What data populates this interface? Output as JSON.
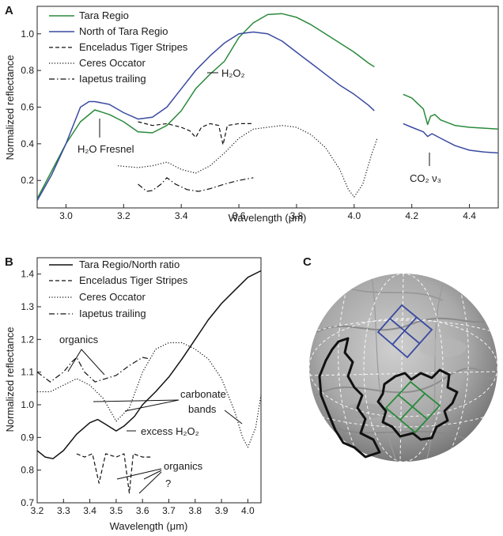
{
  "colors": {
    "green": "#2a8a3c",
    "blue": "#3a4aa0",
    "black": "#111111"
  },
  "chart_data": [
    {
      "panel": "A",
      "type": "line",
      "xlabel": "Wavelength (μm)",
      "ylabel": "Normalized reflectance",
      "xlim": [
        2.9,
        4.5
      ],
      "ylim": [
        0.05,
        1.15
      ],
      "xticks": [
        "3.0",
        "3.2",
        "3.4",
        "3.6",
        "3.8",
        "4.0",
        "4.2",
        "4.4"
      ],
      "yticks": [
        "0.2",
        "0.4",
        "0.6",
        "0.8",
        "1.0"
      ],
      "legend": [
        "Tara Regio",
        "North of Tara Regio",
        "Enceladus Tiger Stripes",
        "Ceres Occator",
        "Iapetus trailing"
      ],
      "annotations": [
        {
          "text": "H₂O Fresnel",
          "x": 3.13,
          "y": 0.52
        },
        {
          "text": "H₂O₂",
          "x": 3.5,
          "y": 0.78
        },
        {
          "text": "CO₂ ν₃",
          "x": 4.26,
          "y": 0.42
        }
      ],
      "series": [
        {
          "name": "Tara Regio",
          "style": "solid",
          "color": "green",
          "segments": [
            [
              [
                2.9,
                0.1
              ],
              [
                2.95,
                0.25
              ],
              [
                3.0,
                0.4
              ],
              [
                3.05,
                0.52
              ],
              [
                3.1,
                0.585
              ],
              [
                3.15,
                0.56
              ],
              [
                3.2,
                0.52
              ],
              [
                3.25,
                0.465
              ],
              [
                3.3,
                0.46
              ],
              [
                3.35,
                0.5
              ],
              [
                3.4,
                0.58
              ],
              [
                3.45,
                0.7
              ],
              [
                3.5,
                0.78
              ],
              [
                3.55,
                0.85
              ],
              [
                3.6,
                0.98
              ],
              [
                3.65,
                1.06
              ],
              [
                3.7,
                1.105
              ],
              [
                3.75,
                1.11
              ],
              [
                3.8,
                1.09
              ],
              [
                3.85,
                1.05
              ],
              [
                3.9,
                1.0
              ],
              [
                3.95,
                0.95
              ],
              [
                4.0,
                0.9
              ],
              [
                4.05,
                0.84
              ],
              [
                4.07,
                0.82
              ]
            ],
            [
              [
                4.17,
                0.67
              ],
              [
                4.2,
                0.65
              ],
              [
                4.22,
                0.62
              ],
              [
                4.24,
                0.59
              ],
              [
                4.255,
                0.505
              ],
              [
                4.265,
                0.55
              ],
              [
                4.28,
                0.56
              ],
              [
                4.3,
                0.53
              ],
              [
                4.35,
                0.5
              ],
              [
                4.4,
                0.49
              ],
              [
                4.5,
                0.48
              ]
            ]
          ]
        },
        {
          "name": "North of Tara Regio",
          "style": "solid",
          "color": "blue",
          "segments": [
            [
              [
                2.9,
                0.09
              ],
              [
                2.95,
                0.23
              ],
              [
                3.0,
                0.4
              ],
              [
                3.05,
                0.6
              ],
              [
                3.08,
                0.63
              ],
              [
                3.1,
                0.63
              ],
              [
                3.15,
                0.615
              ],
              [
                3.2,
                0.57
              ],
              [
                3.25,
                0.535
              ],
              [
                3.3,
                0.545
              ],
              [
                3.35,
                0.6
              ],
              [
                3.4,
                0.7
              ],
              [
                3.45,
                0.8
              ],
              [
                3.5,
                0.88
              ],
              [
                3.55,
                0.95
              ],
              [
                3.6,
                1.0
              ],
              [
                3.65,
                1.01
              ],
              [
                3.7,
                1.0
              ],
              [
                3.75,
                0.96
              ],
              [
                3.8,
                0.9
              ],
              [
                3.85,
                0.84
              ],
              [
                3.9,
                0.78
              ],
              [
                3.95,
                0.72
              ],
              [
                4.0,
                0.67
              ],
              [
                4.05,
                0.61
              ],
              [
                4.07,
                0.58
              ]
            ],
            [
              [
                4.17,
                0.51
              ],
              [
                4.2,
                0.49
              ],
              [
                4.24,
                0.465
              ],
              [
                4.255,
                0.44
              ],
              [
                4.27,
                0.455
              ],
              [
                4.3,
                0.43
              ],
              [
                4.35,
                0.39
              ],
              [
                4.4,
                0.365
              ],
              [
                4.45,
                0.355
              ],
              [
                4.5,
                0.35
              ]
            ]
          ]
        },
        {
          "name": "Enceladus Tiger Stripes",
          "style": "dashed",
          "color": "black",
          "segments": [
            [
              [
                3.25,
                0.52
              ],
              [
                3.3,
                0.5
              ],
              [
                3.35,
                0.51
              ],
              [
                3.4,
                0.49
              ],
              [
                3.43,
                0.47
              ],
              [
                3.45,
                0.435
              ],
              [
                3.47,
                0.49
              ],
              [
                3.5,
                0.51
              ],
              [
                3.53,
                0.5
              ],
              [
                3.545,
                0.395
              ],
              [
                3.56,
                0.5
              ],
              [
                3.6,
                0.51
              ],
              [
                3.65,
                0.51
              ]
            ]
          ]
        },
        {
          "name": "Ceres Occator",
          "style": "dotted",
          "color": "black",
          "segments": [
            [
              [
                3.18,
                0.28
              ],
              [
                3.25,
                0.27
              ],
              [
                3.3,
                0.28
              ],
              [
                3.35,
                0.3
              ],
              [
                3.4,
                0.26
              ],
              [
                3.45,
                0.24
              ],
              [
                3.5,
                0.28
              ],
              [
                3.55,
                0.35
              ],
              [
                3.6,
                0.43
              ],
              [
                3.65,
                0.48
              ],
              [
                3.7,
                0.49
              ],
              [
                3.75,
                0.5
              ],
              [
                3.8,
                0.49
              ],
              [
                3.85,
                0.45
              ],
              [
                3.9,
                0.38
              ],
              [
                3.95,
                0.26
              ],
              [
                3.98,
                0.15
              ],
              [
                4.0,
                0.11
              ],
              [
                4.03,
                0.18
              ],
              [
                4.06,
                0.34
              ],
              [
                4.08,
                0.43
              ]
            ]
          ]
        },
        {
          "name": "Iapetus trailing",
          "style": "dashdot",
          "color": "black",
          "segments": [
            [
              [
                3.25,
                0.18
              ],
              [
                3.28,
                0.14
              ],
              [
                3.3,
                0.145
              ],
              [
                3.33,
                0.18
              ],
              [
                3.35,
                0.215
              ],
              [
                3.38,
                0.18
              ],
              [
                3.42,
                0.15
              ],
              [
                3.46,
                0.14
              ],
              [
                3.5,
                0.155
              ],
              [
                3.55,
                0.18
              ],
              [
                3.6,
                0.2
              ],
              [
                3.65,
                0.215
              ]
            ]
          ]
        }
      ]
    },
    {
      "panel": "B",
      "type": "line",
      "xlabel": "Wavelength (μm)",
      "ylabel": "Normalized reflectance",
      "xlim": [
        3.2,
        4.05
      ],
      "ylim": [
        0.7,
        1.45
      ],
      "xticks": [
        "3.2",
        "3.3",
        "3.4",
        "3.5",
        "3.6",
        "3.7",
        "3.8",
        "3.9",
        "4.0"
      ],
      "yticks": [
        "0.7",
        "0.8",
        "0.9",
        "1.0",
        "1.1",
        "1.2",
        "1.3",
        "1.4"
      ],
      "legend": [
        "Tara Regio/North ratio",
        "Enceladus Tiger Stripes",
        "Ceres Occator",
        "Iapetus trailing"
      ],
      "annotations": [
        {
          "text": "organics",
          "x": 3.33,
          "y": 1.19
        },
        {
          "text": "carbonate",
          "x": 3.81,
          "y": 1.04
        },
        {
          "text": "bands",
          "x": 3.81,
          "y": 0.99
        },
        {
          "text": "excess H₂O₂",
          "x": 3.66,
          "y": 0.91
        },
        {
          "text": "organics",
          "x": 3.7,
          "y": 0.835
        },
        {
          "text": "?",
          "x": 3.66,
          "y": 0.75
        }
      ],
      "series": [
        {
          "name": "Tara Regio/North ratio",
          "style": "solid",
          "color": "black",
          "segments": [
            [
              [
                3.2,
                0.86
              ],
              [
                3.23,
                0.84
              ],
              [
                3.26,
                0.835
              ],
              [
                3.3,
                0.86
              ],
              [
                3.35,
                0.91
              ],
              [
                3.4,
                0.945
              ],
              [
                3.43,
                0.955
              ],
              [
                3.46,
                0.94
              ],
              [
                3.5,
                0.92
              ],
              [
                3.53,
                0.935
              ],
              [
                3.57,
                0.965
              ],
              [
                3.6,
                1.0
              ],
              [
                3.65,
                1.04
              ],
              [
                3.7,
                1.085
              ],
              [
                3.75,
                1.14
              ],
              [
                3.8,
                1.2
              ],
              [
                3.85,
                1.26
              ],
              [
                3.9,
                1.31
              ],
              [
                3.95,
                1.35
              ],
              [
                4.0,
                1.39
              ],
              [
                4.05,
                1.41
              ]
            ]
          ]
        },
        {
          "name": "Enceladus Tiger Stripes",
          "style": "dashed",
          "color": "black",
          "segments": [
            [
              [
                3.35,
                0.85
              ],
              [
                3.38,
                0.84
              ],
              [
                3.41,
                0.85
              ],
              [
                3.435,
                0.76
              ],
              [
                3.46,
                0.85
              ],
              [
                3.5,
                0.84
              ],
              [
                3.53,
                0.85
              ],
              [
                3.55,
                0.73
              ],
              [
                3.565,
                0.85
              ],
              [
                3.6,
                0.84
              ],
              [
                3.63,
                0.84
              ]
            ]
          ]
        },
        {
          "name": "Ceres Occator",
          "style": "dotted",
          "color": "black",
          "segments": [
            [
              [
                3.2,
                1.04
              ],
              [
                3.25,
                1.04
              ],
              [
                3.3,
                1.06
              ],
              [
                3.35,
                1.08
              ],
              [
                3.4,
                1.06
              ],
              [
                3.45,
                1.02
              ],
              [
                3.5,
                0.95
              ],
              [
                3.55,
                0.99
              ],
              [
                3.6,
                1.1
              ],
              [
                3.65,
                1.17
              ],
              [
                3.7,
                1.19
              ],
              [
                3.75,
                1.19
              ],
              [
                3.8,
                1.17
              ],
              [
                3.85,
                1.14
              ],
              [
                3.9,
                1.08
              ],
              [
                3.95,
                0.98
              ],
              [
                3.98,
                0.9
              ],
              [
                4.0,
                0.87
              ],
              [
                4.03,
                0.93
              ],
              [
                4.05,
                1.03
              ]
            ]
          ]
        },
        {
          "name": "Iapetus trailing",
          "style": "dashdot",
          "color": "black",
          "segments": [
            [
              [
                3.2,
                1.1
              ],
              [
                3.25,
                1.07
              ],
              [
                3.3,
                1.1
              ],
              [
                3.33,
                1.13
              ],
              [
                3.35,
                1.145
              ],
              [
                3.38,
                1.1
              ],
              [
                3.42,
                1.07
              ],
              [
                3.46,
                1.08
              ],
              [
                3.5,
                1.09
              ],
              [
                3.55,
                1.12
              ],
              [
                3.6,
                1.145
              ],
              [
                3.63,
                1.14
              ]
            ]
          ]
        }
      ]
    }
  ],
  "panels": {
    "a": "A",
    "b": "B",
    "c": "C"
  }
}
